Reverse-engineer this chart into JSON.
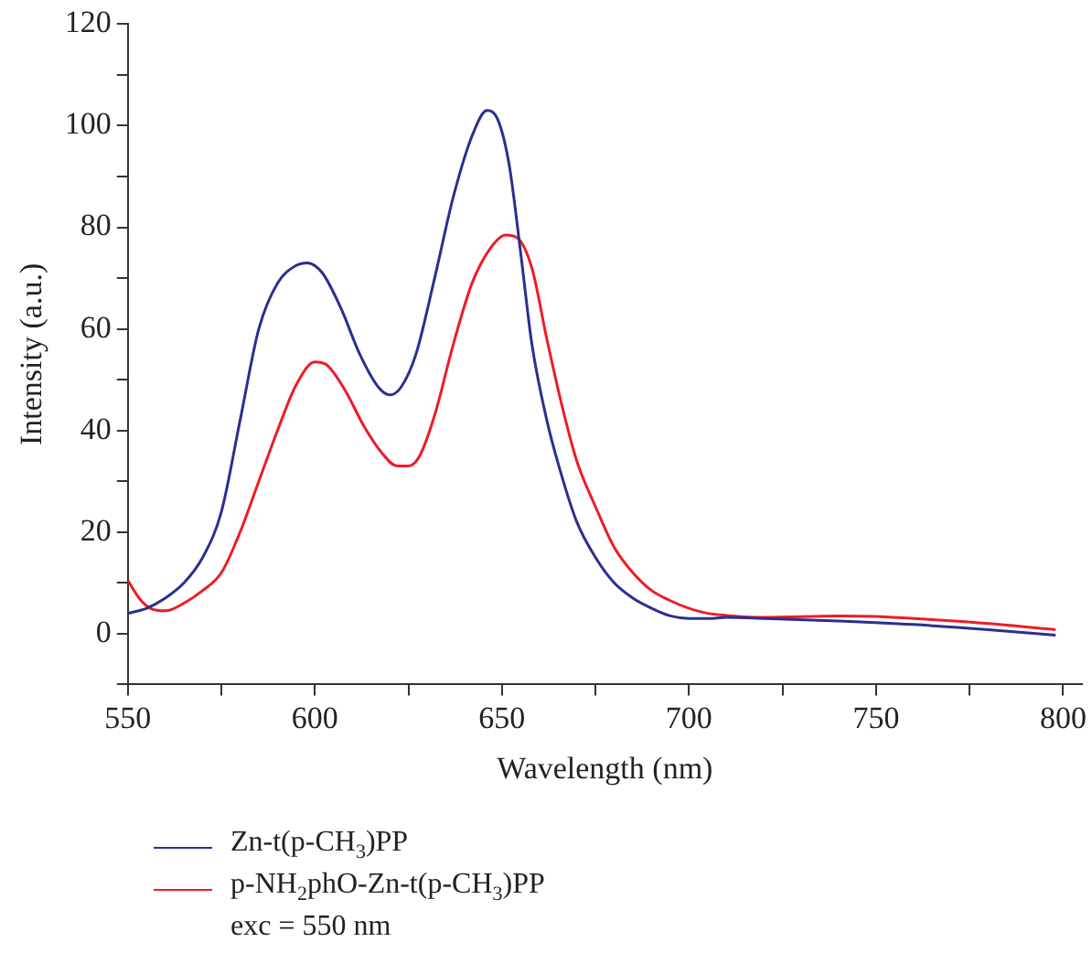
{
  "chart_data": {
    "type": "line",
    "xlabel": "Wavelength (nm)",
    "ylabel": "Intensity (a.u.)",
    "xlim": [
      550,
      805
    ],
    "xticks": [
      550,
      {
        "value": 575,
        "label": null
      },
      600,
      {
        "value": 625,
        "label": null
      },
      650,
      {
        "value": 675,
        "label": null
      },
      700,
      {
        "value": 725,
        "label": null
      },
      750,
      {
        "value": 775,
        "label": null
      },
      800
    ],
    "ylim": [
      -10,
      120
    ],
    "yticks": [
      {
        "value": -10,
        "label": null
      },
      0,
      {
        "value": 10,
        "label": null
      },
      20,
      {
        "value": 30,
        "label": null
      },
      40,
      {
        "value": 50,
        "label": null
      },
      60,
      {
        "value": 70,
        "label": null
      },
      80,
      {
        "value": 90,
        "label": null
      },
      100,
      {
        "value": 110,
        "label": null
      },
      120
    ],
    "grid": false,
    "legend": "bottom left",
    "marker": "none",
    "line_style": "solid",
    "annotations": [
      "exc = 550 nm"
    ],
    "series": [
      {
        "name": "Zn-t(p-CH$_{3}$)PP",
        "color": "#2b2f8f",
        "x": [
          550,
          555,
          560,
          565,
          570,
          575,
          580,
          585,
          590,
          595,
          598,
          602,
          607,
          612,
          617,
          620,
          623,
          627,
          632,
          637,
          642,
          646,
          649,
          652,
          655,
          658,
          662,
          666,
          670,
          675,
          680,
          685,
          690,
          695,
          700,
          705,
          710,
          720,
          740,
          760,
          780,
          798
        ],
        "values": [
          4,
          5,
          7,
          10,
          15,
          24,
          42,
          60,
          69,
          72.5,
          73,
          71,
          64,
          55,
          48.5,
          47,
          48.5,
          55,
          70,
          86,
          98,
          103,
          101,
          92,
          75,
          57,
          42,
          31,
          22,
          15,
          10,
          7,
          5,
          3.5,
          3,
          3,
          3.2,
          3,
          2.5,
          1.8,
          0.8,
          -0.3
        ]
      },
      {
        "name": "p-NH$_{2}$phO-Zn-t(p-CH$_{3}$)PP",
        "color": "#ee1c25",
        "x": [
          550,
          553,
          556,
          560,
          565,
          570,
          575,
          580,
          585,
          590,
          595,
          600,
          603,
          608,
          613,
          618,
          622,
          625,
          628,
          632,
          637,
          642,
          647,
          651,
          654,
          658,
          662,
          666,
          670,
          675,
          680,
          685,
          690,
          695,
          700,
          705,
          710,
          720,
          740,
          750,
          760,
          780,
          798
        ],
        "values": [
          10.5,
          7,
          5,
          4.5,
          6,
          8.5,
          12,
          20,
          30,
          40,
          49,
          53.5,
          53,
          48,
          41,
          35.5,
          33,
          33,
          35,
          43,
          57,
          69,
          76,
          78.5,
          78,
          72,
          58,
          45,
          34,
          25,
          17,
          12,
          8.5,
          6.5,
          5,
          4,
          3.6,
          3.2,
          3.5,
          3.4,
          3,
          2,
          0.8
        ]
      }
    ]
  }
}
